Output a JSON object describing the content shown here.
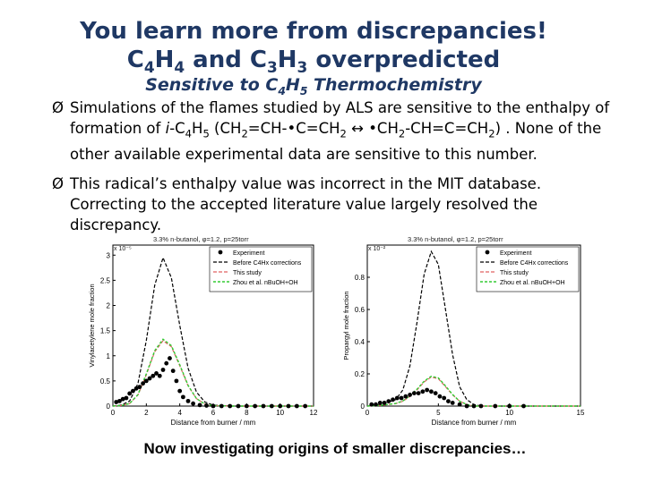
{
  "title": {
    "line1": "You learn more from discrepancies!",
    "line2_parts": [
      "C",
      "4",
      "H",
      "4",
      " and C",
      "3",
      "H",
      "3",
      " overpredicted"
    ],
    "line3_parts": [
      "Sensitive to C",
      "4",
      "H",
      "5",
      " Thermochemistry"
    ]
  },
  "bullets": [
    {
      "arrow": "Ø",
      "segments": [
        {
          "t": "Simulations of the flames studied by ALS are sensitive to the enthalpy of formation of "
        },
        {
          "t": "i",
          "i": true
        },
        {
          "t": "-C"
        },
        {
          "t": "4",
          "sub": true
        },
        {
          "t": "H"
        },
        {
          "t": "5",
          "sub": true
        },
        {
          "t": " (CH"
        },
        {
          "t": "2",
          "sub": true
        },
        {
          "t": "=CH-•C=CH"
        },
        {
          "t": "2",
          "sub": true
        },
        {
          "t": " ↔ •CH"
        },
        {
          "t": "2",
          "sub": true
        },
        {
          "t": "-CH=C=CH"
        },
        {
          "t": "2",
          "sub": true
        },
        {
          "t": ") . None of the other available experimental data are sensitive to this number."
        }
      ]
    },
    {
      "arrow": "Ø",
      "segments": [
        {
          "t": "This radical’s enthalpy value was incorrect in the MIT database. Correcting to the accepted literature value largely resolved the discrepancy."
        }
      ]
    }
  ],
  "footer": "Now investigating origins of smaller discrepancies…",
  "colors": {
    "title": "#1f3864",
    "before": "#000000",
    "study": "#e06060",
    "zhou": "#33cc33"
  },
  "chart_data": [
    {
      "type": "line",
      "title": "3.3% n-butanol, φ=1.2, p=25torr",
      "xlabel": "Distance from burner / mm",
      "ylabel": "Vinylacetylene mole fraction",
      "y_multiplier": "x 10⁻⁵",
      "xlim": [
        0,
        12
      ],
      "ylim": [
        0,
        3.2
      ],
      "xticks": [
        0,
        2,
        4,
        6,
        8,
        10,
        12
      ],
      "yticks": [
        0,
        0.5,
        1,
        1.5,
        2,
        2.5,
        3
      ],
      "legend_position": "top-right",
      "legend": [
        "Experiment",
        "Before C4Hx corrections",
        "This study",
        "Zhou et al. nBuOH+OH"
      ],
      "series": [
        {
          "name": "Before C4Hx corrections",
          "style": "black-dash",
          "x": [
            0,
            0.5,
            1,
            1.5,
            2,
            2.5,
            3,
            3.5,
            4,
            4.5,
            5,
            5.5,
            6,
            7,
            8,
            10,
            12
          ],
          "y": [
            0,
            0.02,
            0.1,
            0.45,
            1.3,
            2.4,
            2.95,
            2.55,
            1.6,
            0.75,
            0.28,
            0.08,
            0.02,
            0,
            0,
            0,
            0
          ]
        },
        {
          "name": "This study",
          "style": "red-dash",
          "x": [
            0,
            0.5,
            1,
            1.5,
            2,
            2.5,
            3,
            3.5,
            4,
            4.5,
            5,
            5.5,
            6,
            7,
            8,
            10,
            12
          ],
          "y": [
            0,
            0.01,
            0.05,
            0.22,
            0.62,
            1.08,
            1.3,
            1.18,
            0.8,
            0.4,
            0.15,
            0.04,
            0.01,
            0,
            0,
            0,
            0
          ]
        },
        {
          "name": "Zhou et al. nBuOH+OH",
          "style": "green-dash",
          "x": [
            0,
            0.5,
            1,
            1.5,
            2,
            2.5,
            3,
            3.5,
            4,
            4.5,
            5,
            5.5,
            6,
            7,
            8,
            10,
            12
          ],
          "y": [
            0,
            0.01,
            0.05,
            0.23,
            0.64,
            1.1,
            1.33,
            1.2,
            0.82,
            0.41,
            0.15,
            0.04,
            0.01,
            0,
            0,
            0,
            0
          ]
        },
        {
          "name": "Experiment",
          "style": "dots",
          "x": [
            0.2,
            0.4,
            0.6,
            0.8,
            1.0,
            1.2,
            1.4,
            1.6,
            1.8,
            2.0,
            2.2,
            2.4,
            2.6,
            2.8,
            3.0,
            3.2,
            3.4,
            3.6,
            3.8,
            4.0,
            4.2,
            4.5,
            4.8,
            5.2,
            5.6,
            6.0,
            6.5,
            7.0,
            7.5,
            8.0,
            8.5,
            9.0,
            9.5,
            10.0,
            10.5,
            11.0,
            11.5
          ],
          "y": [
            0.08,
            0.1,
            0.14,
            0.16,
            0.25,
            0.3,
            0.35,
            0.38,
            0.45,
            0.5,
            0.55,
            0.6,
            0.65,
            0.6,
            0.72,
            0.85,
            0.95,
            0.7,
            0.5,
            0.3,
            0.18,
            0.1,
            0.05,
            0.02,
            0.01,
            0.0,
            0.0,
            0.0,
            0.0,
            0.0,
            0.0,
            0.0,
            0.0,
            0.0,
            0.0,
            0.0,
            0.0
          ]
        }
      ]
    },
    {
      "type": "line",
      "title": "3.3% n-butanol, φ=1.2, p=25torr",
      "xlabel": "Distance from burner / mm",
      "ylabel": "Propargyl mole fraction",
      "y_multiplier": "x 10⁻²",
      "xlim": [
        0,
        15
      ],
      "ylim": [
        0,
        1
      ],
      "xticks": [
        0,
        5,
        10,
        15
      ],
      "yticks": [
        0,
        0.2,
        0.4,
        0.6,
        0.8
      ],
      "legend_position": "top-right",
      "legend": [
        "Experiment",
        "Before C4Hx corrections",
        "This study",
        "Zhou et al. nBuOH+OH"
      ],
      "series": [
        {
          "name": "Before C4Hx corrections",
          "style": "black-dash",
          "x": [
            0,
            1,
            2,
            2.5,
            3,
            3.5,
            4,
            4.5,
            5,
            5.5,
            6,
            6.5,
            7,
            7.5,
            8,
            9,
            10,
            15
          ],
          "y": [
            0,
            0.01,
            0.04,
            0.1,
            0.25,
            0.52,
            0.82,
            0.96,
            0.88,
            0.6,
            0.32,
            0.12,
            0.04,
            0.01,
            0,
            0,
            0,
            0
          ]
        },
        {
          "name": "This study",
          "style": "red-dash",
          "x": [
            0,
            1,
            2,
            2.5,
            3,
            3.5,
            4,
            4.5,
            5,
            5.5,
            6,
            6.5,
            7,
            7.5,
            8,
            9,
            10,
            15
          ],
          "y": [
            0,
            0.005,
            0.015,
            0.03,
            0.06,
            0.1,
            0.15,
            0.18,
            0.17,
            0.12,
            0.07,
            0.03,
            0.01,
            0,
            0,
            0,
            0,
            0
          ]
        },
        {
          "name": "Zhou et al. nBuOH+OH",
          "style": "green-dash",
          "x": [
            0,
            1,
            2,
            2.5,
            3,
            3.5,
            4,
            4.5,
            5,
            5.5,
            6,
            6.5,
            7,
            7.5,
            8,
            9,
            10,
            15
          ],
          "y": [
            0,
            0.005,
            0.016,
            0.032,
            0.065,
            0.105,
            0.155,
            0.185,
            0.175,
            0.125,
            0.072,
            0.03,
            0.01,
            0,
            0,
            0,
            0,
            0
          ]
        },
        {
          "name": "Experiment",
          "style": "dots",
          "x": [
            0.3,
            0.6,
            0.9,
            1.2,
            1.5,
            1.8,
            2.1,
            2.4,
            2.7,
            3.0,
            3.3,
            3.6,
            3.9,
            4.2,
            4.5,
            4.8,
            5.1,
            5.4,
            5.7,
            6.0,
            6.5,
            7.0,
            7.5,
            8.0,
            9.0,
            10.0,
            11.0
          ],
          "y": [
            0.01,
            0.01,
            0.02,
            0.02,
            0.03,
            0.04,
            0.05,
            0.05,
            0.06,
            0.07,
            0.08,
            0.08,
            0.09,
            0.1,
            0.09,
            0.08,
            0.06,
            0.05,
            0.03,
            0.02,
            0.01,
            0.0,
            0.0,
            0.0,
            0.0,
            0.0,
            0.0
          ]
        }
      ]
    }
  ]
}
